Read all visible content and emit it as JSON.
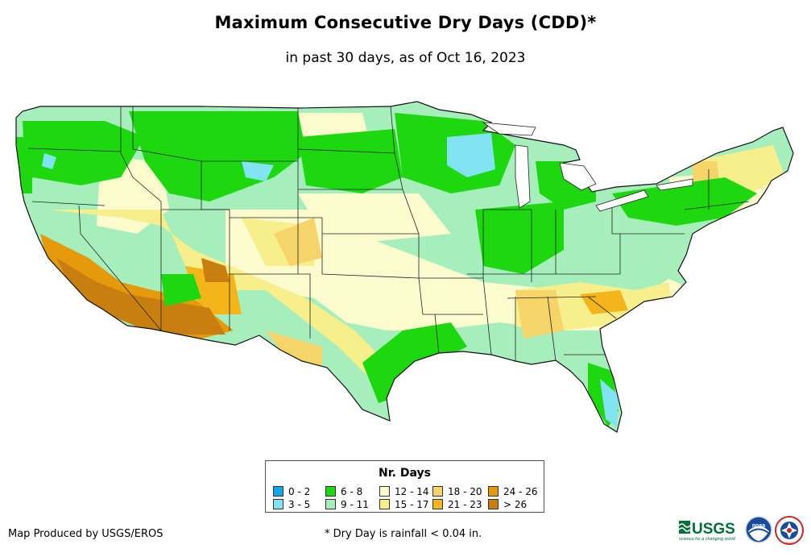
{
  "title": "Maximum Consecutive Dry Days (CDD)*",
  "subtitle": "in past 30 days, as of Oct 16, 2023",
  "legend": {
    "title": "Nr. Days",
    "classes": [
      {
        "label": "0 - 2",
        "color": "#0ea7f0"
      },
      {
        "label": "3 - 5",
        "color": "#82e3f2"
      },
      {
        "label": "6 - 8",
        "color": "#1ed80f"
      },
      {
        "label": "9 - 11",
        "color": "#a6efbd"
      },
      {
        "label": "12 - 14",
        "color": "#fbfbce"
      },
      {
        "label": "15 - 17",
        "color": "#f7ee8c"
      },
      {
        "label": "18 - 20",
        "color": "#f5d46a"
      },
      {
        "label": "21 - 23",
        "color": "#f3b51a"
      },
      {
        "label": "24 - 26",
        "color": "#e49a0a"
      },
      {
        "label": "> 26",
        "color": "#c97f10"
      }
    ]
  },
  "credit": "Map Produced by USGS/EROS",
  "footnote": "* Dry Day is rainfall < 0.04 in.",
  "logos": {
    "usgs_text": "USGS",
    "usgs_tagline": "science for a changing world",
    "noaa_text": "noaa",
    "nws_text": "NWS"
  }
}
